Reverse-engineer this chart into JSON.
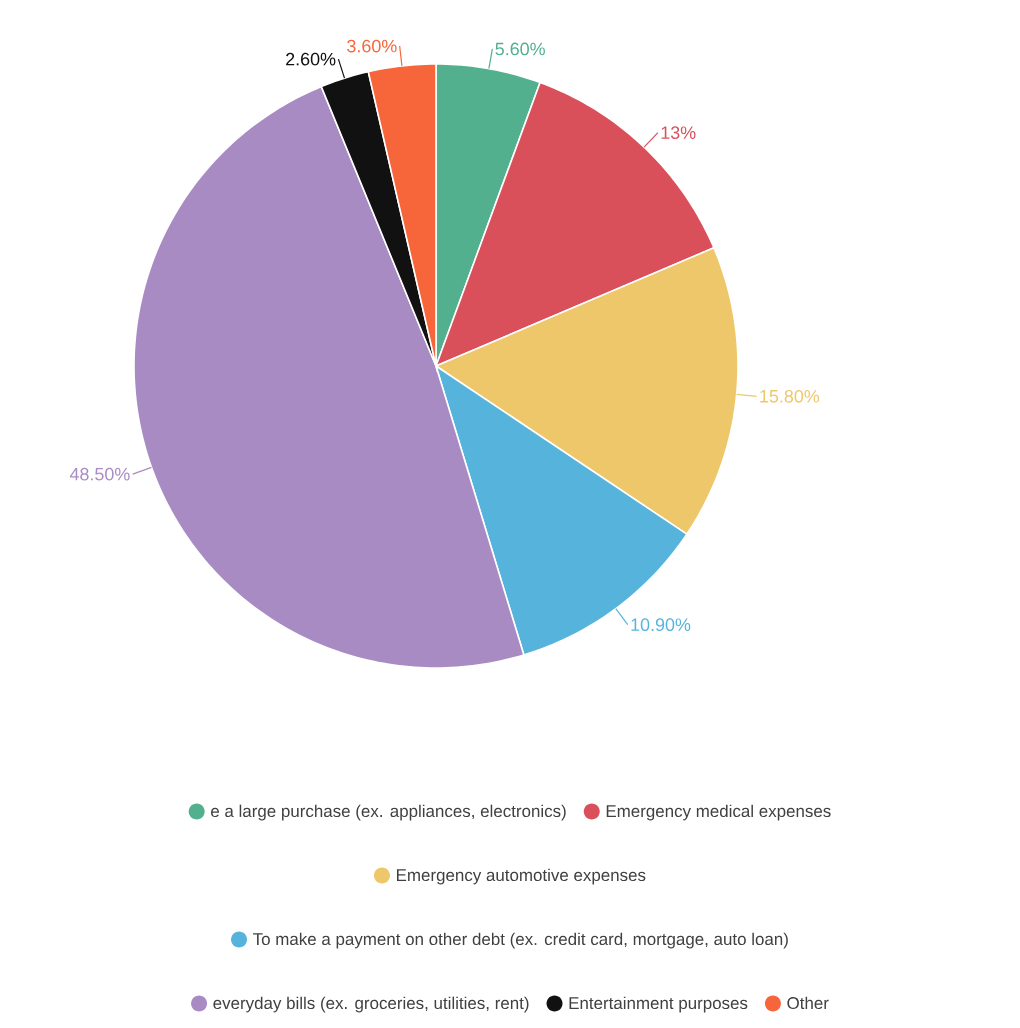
{
  "chart_data": {
    "type": "pie",
    "categories": [
      "e a large purchase (ex. appliances, electronics)",
      "Emergency medical expenses",
      "Emergency automotive expenses",
      "To make a payment on other debt (ex. credit card, mortgage, auto loan)",
      "everyday bills (ex. groceries, utilities, rent)",
      "Entertainment purposes",
      "Other"
    ],
    "values": [
      5.6,
      13,
      15.8,
      10.9,
      48.5,
      2.6,
      3.6
    ],
    "colors": [
      "#52b08e",
      "#d9505a",
      "#eec76a",
      "#56b4dc",
      "#a98bc4",
      "#111111",
      "#f7663a"
    ],
    "value_labels": [
      "5.60%",
      "13%",
      "15.80%",
      "10.90%",
      "48.50%",
      "2.60%",
      "3.60%"
    ],
    "legend": "bottom"
  }
}
